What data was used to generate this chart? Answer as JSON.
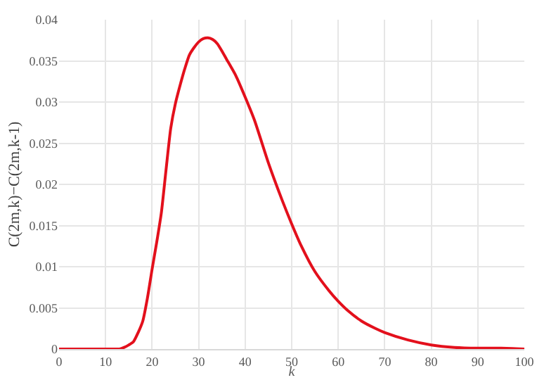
{
  "chart_data": {
    "type": "line",
    "xlabel": "k",
    "ylabel": "C(2m,k)−C(2m,k-1)",
    "x": [
      0,
      5,
      10,
      12,
      13,
      14,
      15,
      16,
      17,
      18,
      19,
      20,
      21,
      22,
      23,
      24,
      25,
      26,
      27,
      28,
      29,
      30,
      31,
      32,
      33,
      34,
      35,
      36,
      38,
      40,
      42,
      45,
      48,
      50,
      52,
      55,
      58,
      60,
      62,
      65,
      68,
      70,
      75,
      80,
      85,
      90,
      95,
      100
    ],
    "series": [
      {
        "color": "#e3101c",
        "values": [
          0,
          0,
          0,
          0,
          0,
          0.0002,
          0.0005,
          0.0009,
          0.002,
          0.0034,
          0.0062,
          0.0097,
          0.013,
          0.0166,
          0.0218,
          0.0268,
          0.0298,
          0.032,
          0.034,
          0.0357,
          0.0366,
          0.0373,
          0.0377,
          0.0378,
          0.0376,
          0.0371,
          0.0362,
          0.0352,
          0.0332,
          0.0306,
          0.0278,
          0.0226,
          0.018,
          0.0152,
          0.0126,
          0.0094,
          0.0071,
          0.0058,
          0.0047,
          0.0034,
          0.0025,
          0.002,
          0.0011,
          0.0005,
          0.0002,
          0.0001,
          0.0001,
          0
        ]
      }
    ],
    "xlim": [
      0,
      100
    ],
    "xticks": [
      0,
      10,
      20,
      30,
      40,
      50,
      60,
      70,
      80,
      90,
      100
    ],
    "ylim": [
      0,
      0.04
    ],
    "yticks": [
      0,
      0.005,
      0.01,
      0.015,
      0.02,
      0.025,
      0.03,
      0.035,
      0.04
    ],
    "grid": true,
    "legend": false,
    "marker": "none",
    "line_style": "solid"
  }
}
